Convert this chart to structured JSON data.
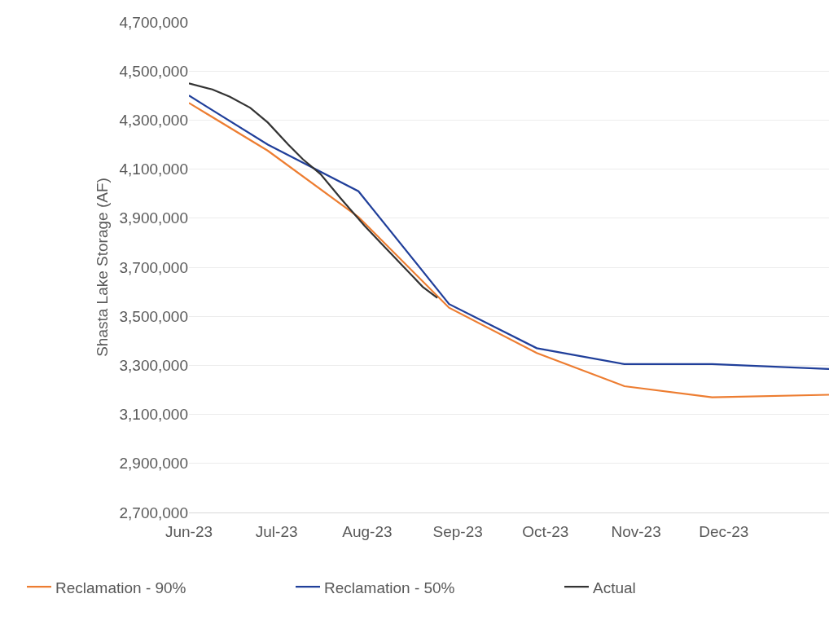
{
  "chart_data": {
    "type": "line",
    "ylabel": "Shasta Lake Storage (AF)",
    "xlim": [
      "2023-06-01",
      "2024-01-06"
    ],
    "xticks": [
      {
        "value": "2023-06-01",
        "label": "Jun-23"
      },
      {
        "value": "2023-07-01",
        "label": "Jul-23"
      },
      {
        "value": "2023-08-01",
        "label": "Aug-23"
      },
      {
        "value": "2023-09-01",
        "label": "Sep-23"
      },
      {
        "value": "2023-10-01",
        "label": "Oct-23"
      },
      {
        "value": "2023-11-01",
        "label": "Nov-23"
      },
      {
        "value": "2023-12-01",
        "label": "Dec-23"
      }
    ],
    "ylim": [
      2700000,
      4700000
    ],
    "yticks": [
      {
        "value": 2700000,
        "label": "2,700,000"
      },
      {
        "value": 2900000,
        "label": "2,900,000"
      },
      {
        "value": 3100000,
        "label": "3,100,000"
      },
      {
        "value": 3300000,
        "label": "3,300,000"
      },
      {
        "value": 3500000,
        "label": "3,500,000"
      },
      {
        "value": 3700000,
        "label": "3,700,000"
      },
      {
        "value": 3900000,
        "label": "3,900,000"
      },
      {
        "value": 4100000,
        "label": "4,100,000"
      },
      {
        "value": 4300000,
        "label": "4,300,000"
      },
      {
        "value": 4500000,
        "label": "4,500,000"
      },
      {
        "value": 4700000,
        "label": "4,700,000"
      }
    ],
    "grid": "y",
    "legend": "bottom",
    "marker": "none",
    "line_style": "solid",
    "series": [
      {
        "name": "Reclamation - 90%",
        "color": "#ed7d31",
        "x": [
          "2023-06-01",
          "2023-06-28",
          "2023-07-29",
          "2023-08-29",
          "2023-09-28",
          "2023-10-28",
          "2023-11-27",
          "2024-01-06"
        ],
        "values": [
          4370000,
          4175000,
          3905000,
          3535000,
          3350000,
          3215000,
          3170000,
          3180000
        ]
      },
      {
        "name": "Reclamation - 50%",
        "color": "#203f9a",
        "x": [
          "2023-06-01",
          "2023-06-28",
          "2023-07-29",
          "2023-08-29",
          "2023-09-28",
          "2023-10-28",
          "2023-11-27",
          "2024-01-06"
        ],
        "values": [
          4400000,
          4200000,
          4010000,
          3550000,
          3370000,
          3305000,
          3305000,
          3285000
        ]
      },
      {
        "name": "Actual",
        "color": "#333333",
        "x": [
          "2023-06-01",
          "2023-06-09",
          "2023-06-15",
          "2023-06-22",
          "2023-06-28",
          "2023-07-05",
          "2023-07-10",
          "2023-07-16",
          "2023-07-23",
          "2023-07-31",
          "2023-08-06",
          "2023-08-14",
          "2023-08-20",
          "2023-08-25"
        ],
        "values": [
          4450000,
          4425000,
          4395000,
          4350000,
          4290000,
          4200000,
          4140000,
          4080000,
          3980000,
          3870000,
          3795000,
          3695000,
          3620000,
          3575000
        ]
      }
    ]
  }
}
